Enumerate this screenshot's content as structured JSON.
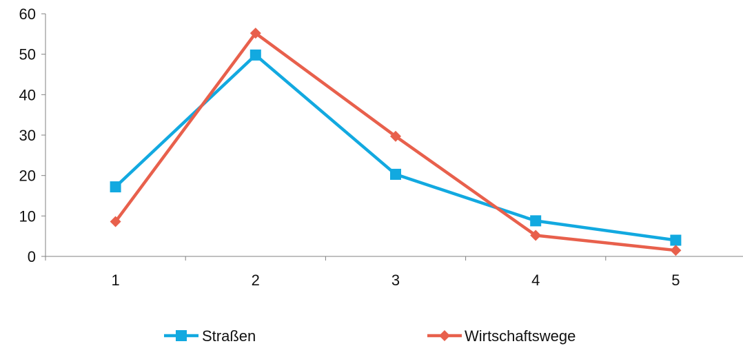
{
  "chart_data": {
    "type": "line",
    "title": "",
    "xlabel": "",
    "ylabel": "",
    "x": [
      "1",
      "2",
      "3",
      "4",
      "5"
    ],
    "ylim": [
      0,
      60
    ],
    "yticks": [
      "0",
      "10",
      "20",
      "30",
      "40",
      "50",
      "60"
    ],
    "grid": false,
    "legend_position": "bottom",
    "series": [
      {
        "name": "Straßen",
        "values": [
          17.2,
          49.8,
          20.3,
          8.8,
          4.0
        ],
        "color": "#12A9E0",
        "marker": "square"
      },
      {
        "name": "Wirtschaftswege",
        "values": [
          8.6,
          55.2,
          29.7,
          5.2,
          1.5
        ],
        "color": "#E8604C",
        "marker": "diamond"
      }
    ]
  }
}
